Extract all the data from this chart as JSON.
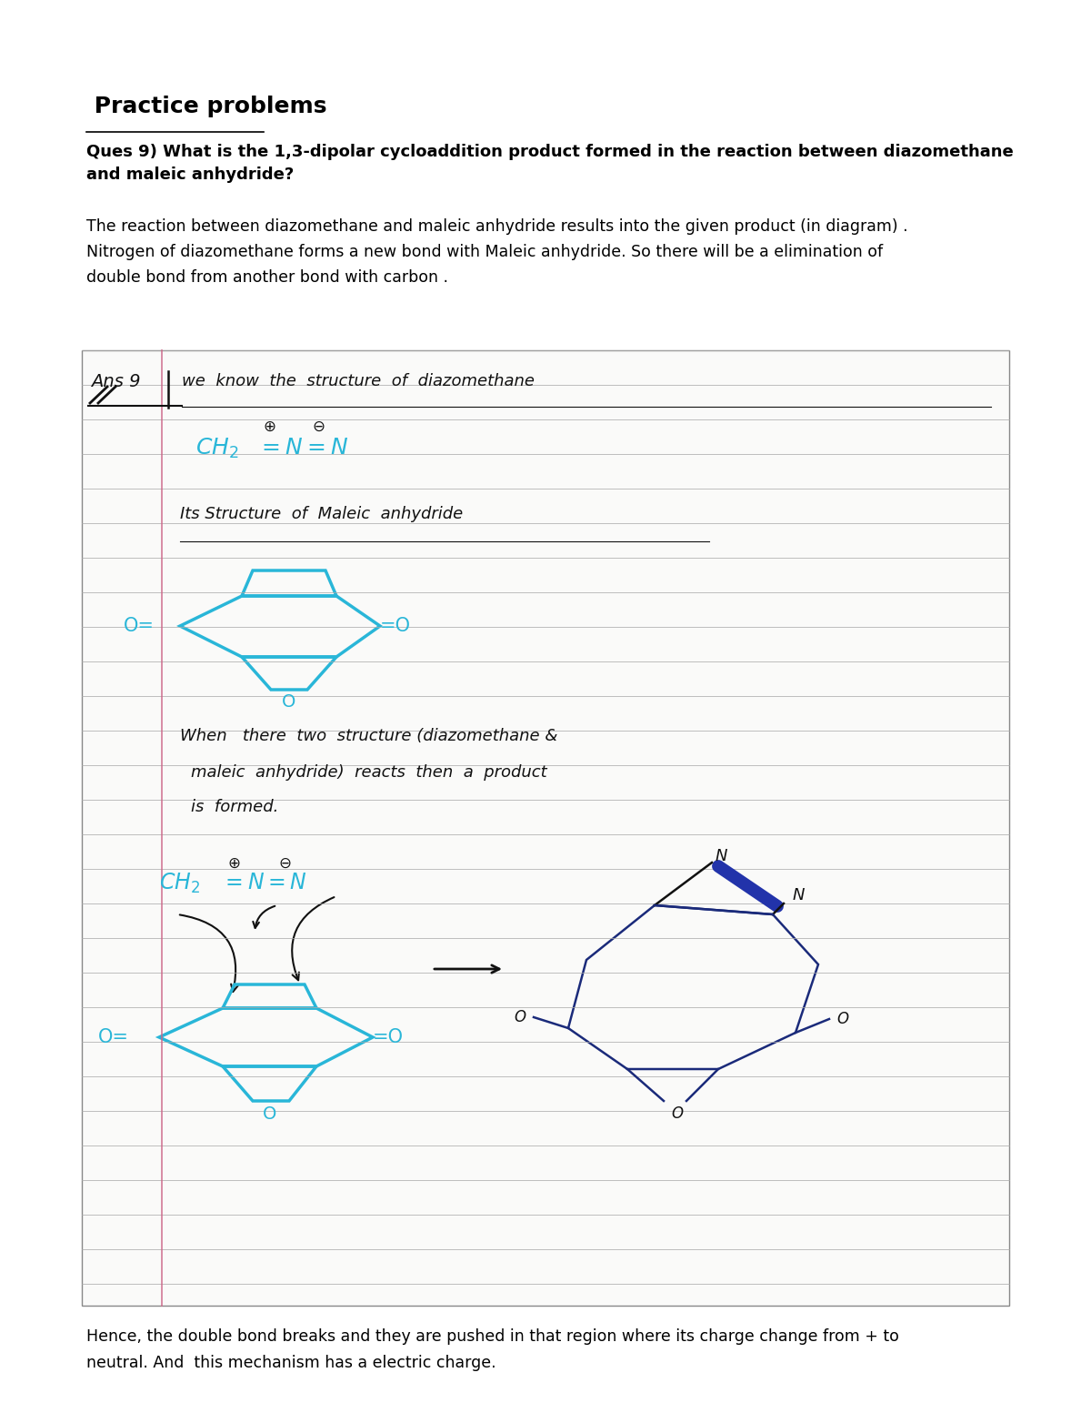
{
  "bg_color": "#ffffff",
  "page_title": " Practice problems",
  "question_bold": "Ques 9) What is the 1,3-dipolar cycloaddition product formed in the reaction between diazomethane\nand maleic anhydride?",
  "paragraph": "The reaction between diazomethane and maleic anhydride results into the given product (in diagram) .\nNitrogen of diazomethane forms a new bond with Maleic anhydride. So there will be a elimination of\ndouble bond from another bond with carbon .",
  "conclusion": "Hence, the double bond breaks and they are pushed in that region where its charge change from + to\nneutral. And  this mechanism has a electric charge.",
  "cyan_color": "#29b6d8",
  "navy_color": "#1a2a7a",
  "navy_fill": "#2233aa",
  "black_color": "#111111",
  "pink_line_color": "#cc6688",
  "notebook_line_color": "#aaaaaa",
  "notebook_bg": "#fafaf9",
  "border_color": "#888888"
}
